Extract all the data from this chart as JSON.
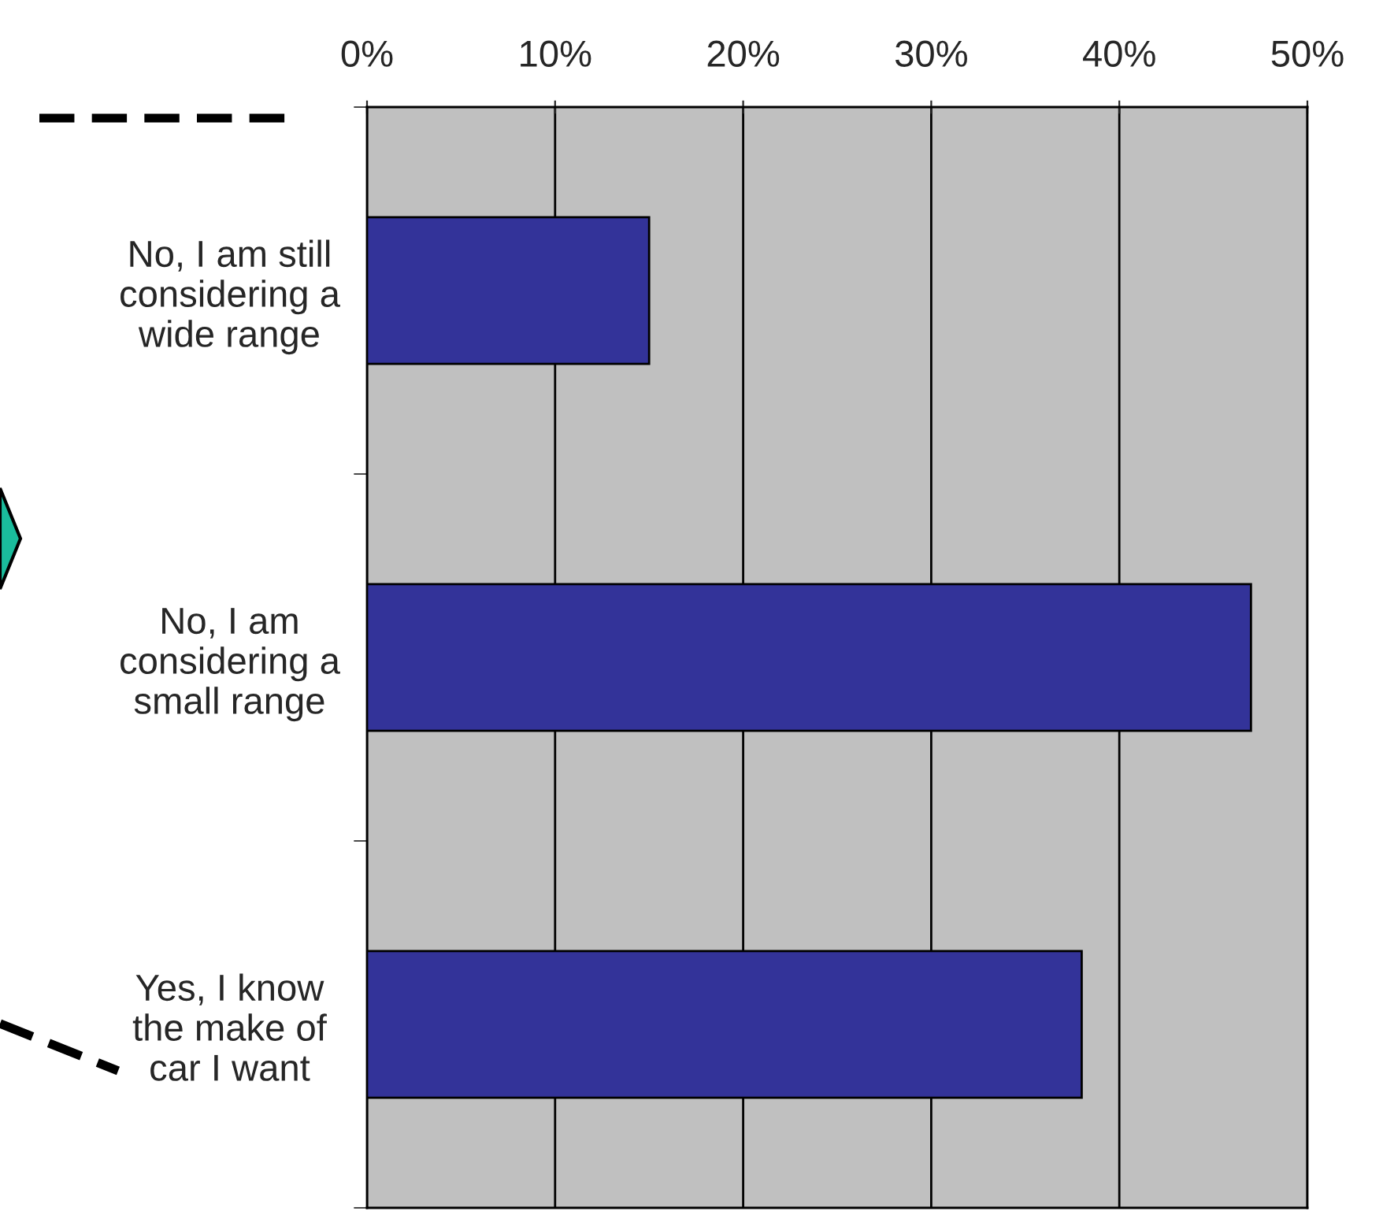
{
  "chart_data": {
    "type": "bar",
    "orientation": "horizontal",
    "categories": [
      "No, I am still\nconsidering a\nwide range",
      "No, I am\nconsidering a\nsmall range",
      "Yes, I know\nthe make of\ncar I want"
    ],
    "values": [
      15,
      47,
      38
    ],
    "color": "#333399",
    "xlim": [
      0,
      50
    ],
    "xticks": [
      {
        "value": 0,
        "label": "0%"
      },
      {
        "value": 10,
        "label": "10%"
      },
      {
        "value": 20,
        "label": "20%"
      },
      {
        "value": 30,
        "label": "30%"
      },
      {
        "value": 40,
        "label": "40%"
      },
      {
        "value": 50,
        "label": "50%"
      }
    ],
    "grid": "x"
  }
}
